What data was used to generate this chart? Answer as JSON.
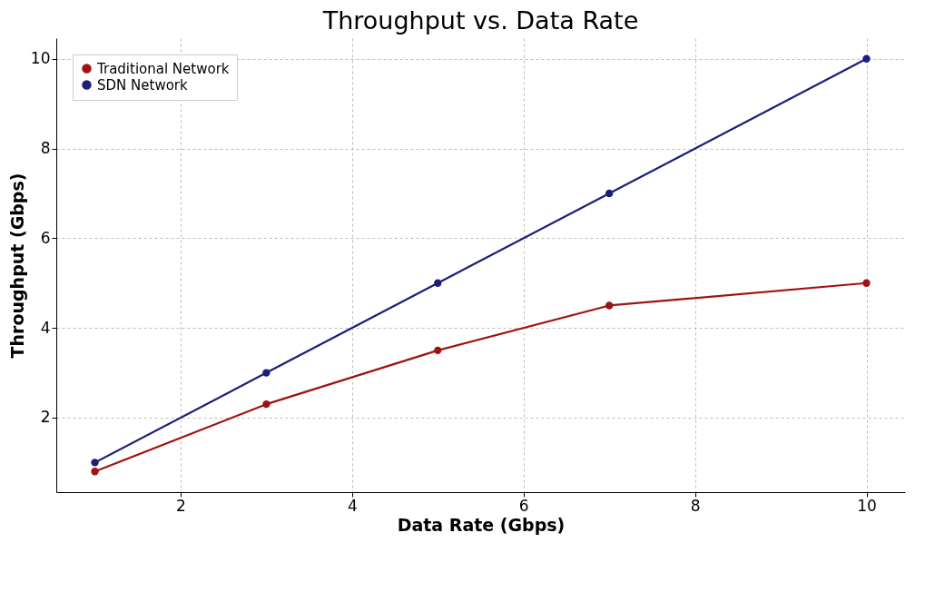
{
  "chart_data": {
    "type": "line",
    "title": "Throughput vs. Data Rate",
    "xlabel": "Data Rate (Gbps)",
    "ylabel": "Throughput (Gbps)",
    "x": [
      1,
      3,
      5,
      7,
      10
    ],
    "series": [
      {
        "name": "Traditional Network",
        "color": "#a01212",
        "values": [
          0.8,
          2.3,
          3.5,
          4.5,
          5.0
        ]
      },
      {
        "name": "SDN Network",
        "color": "#1a1f7a",
        "values": [
          1,
          3,
          5,
          7,
          10
        ]
      }
    ],
    "xlim": [
      0.55,
      10.45
    ],
    "ylim": [
      0.34,
      10.46
    ],
    "xticks": [
      2,
      4,
      6,
      8,
      10
    ],
    "yticks": [
      2,
      4,
      6,
      8,
      10
    ],
    "grid": true,
    "legend": "top left",
    "marker": "circle",
    "line_style": "solid"
  }
}
